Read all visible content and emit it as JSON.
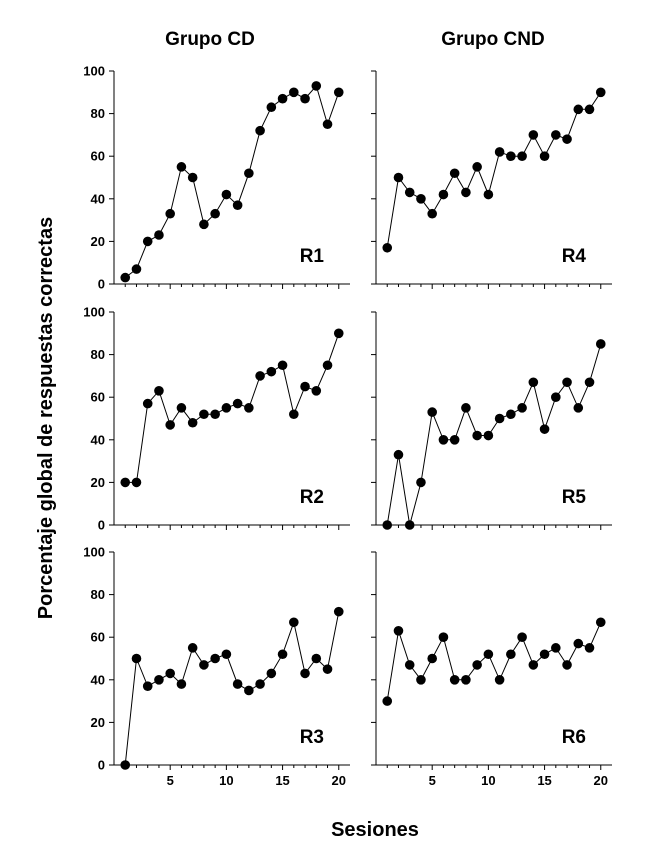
{
  "figure": {
    "column_titles": [
      "Grupo CD",
      "Grupo CND"
    ],
    "ylabel": "Porcentaje global de respuestas correctas",
    "xlabel": "Sesiones"
  },
  "chart_data": [
    {
      "type": "line",
      "label": "R1",
      "column": "Grupo CD",
      "x": [
        1,
        2,
        3,
        4,
        5,
        6,
        7,
        8,
        9,
        10,
        11,
        12,
        13,
        14,
        15,
        16,
        17,
        18,
        19,
        20
      ],
      "values": [
        3,
        7,
        20,
        23,
        33,
        55,
        50,
        28,
        33,
        42,
        37,
        52,
        72,
        83,
        87,
        90,
        87,
        93,
        75,
        90
      ],
      "ylim": [
        0,
        100
      ],
      "xlim": [
        0,
        21
      ],
      "yticks": [
        0,
        20,
        40,
        60,
        80,
        100
      ],
      "xticks": [
        5,
        10,
        15,
        20
      ],
      "marker": "filled-circle",
      "color": "#000000"
    },
    {
      "type": "line",
      "label": "R4",
      "column": "Grupo CND",
      "x": [
        1,
        2,
        3,
        4,
        5,
        6,
        7,
        8,
        9,
        10,
        11,
        12,
        13,
        14,
        15,
        16,
        17,
        18,
        19,
        20
      ],
      "values": [
        17,
        50,
        43,
        40,
        33,
        42,
        52,
        43,
        55,
        42,
        62,
        60,
        60,
        70,
        60,
        70,
        68,
        82,
        82,
        90
      ],
      "ylim": [
        0,
        100
      ],
      "xlim": [
        0,
        21
      ],
      "yticks": [
        0,
        20,
        40,
        60,
        80,
        100
      ],
      "xticks": [
        5,
        10,
        15,
        20
      ],
      "marker": "filled-circle",
      "color": "#000000"
    },
    {
      "type": "line",
      "label": "R2",
      "column": "Grupo CD",
      "x": [
        1,
        2,
        3,
        4,
        5,
        6,
        7,
        8,
        9,
        10,
        11,
        12,
        13,
        14,
        15,
        16,
        17,
        18,
        19,
        20
      ],
      "values": [
        20,
        20,
        57,
        63,
        47,
        55,
        48,
        52,
        52,
        55,
        57,
        55,
        70,
        72,
        75,
        52,
        65,
        63,
        75,
        90
      ],
      "ylim": [
        0,
        100
      ],
      "xlim": [
        0,
        21
      ],
      "yticks": [
        0,
        20,
        40,
        60,
        80,
        100
      ],
      "xticks": [
        5,
        10,
        15,
        20
      ],
      "marker": "filled-circle",
      "color": "#000000"
    },
    {
      "type": "line",
      "label": "R5",
      "column": "Grupo CND",
      "x": [
        1,
        2,
        3,
        4,
        5,
        6,
        7,
        8,
        9,
        10,
        11,
        12,
        13,
        14,
        15,
        16,
        17,
        18,
        19,
        20
      ],
      "values": [
        0,
        33,
        0,
        20,
        53,
        40,
        40,
        55,
        42,
        42,
        50,
        52,
        55,
        67,
        45,
        60,
        67,
        55,
        67,
        85
      ],
      "ylim": [
        0,
        100
      ],
      "xlim": [
        0,
        21
      ],
      "yticks": [
        0,
        20,
        40,
        60,
        80,
        100
      ],
      "xticks": [
        5,
        10,
        15,
        20
      ],
      "marker": "filled-circle",
      "color": "#000000"
    },
    {
      "type": "line",
      "label": "R3",
      "column": "Grupo CD",
      "x": [
        1,
        2,
        3,
        4,
        5,
        6,
        7,
        8,
        9,
        10,
        11,
        12,
        13,
        14,
        15,
        16,
        17,
        18,
        19,
        20
      ],
      "values": [
        0,
        50,
        37,
        40,
        43,
        38,
        55,
        47,
        50,
        52,
        38,
        35,
        38,
        43,
        52,
        67,
        43,
        50,
        45,
        72
      ],
      "ylim": [
        0,
        100
      ],
      "xlim": [
        0,
        21
      ],
      "yticks": [
        0,
        20,
        40,
        60,
        80,
        100
      ],
      "xticks": [
        5,
        10,
        15,
        20
      ],
      "marker": "filled-circle",
      "color": "#000000"
    },
    {
      "type": "line",
      "label": "R6",
      "column": "Grupo CND",
      "x": [
        1,
        2,
        3,
        4,
        5,
        6,
        7,
        8,
        9,
        10,
        11,
        12,
        13,
        14,
        15,
        16,
        17,
        18,
        19,
        20
      ],
      "values": [
        30,
        63,
        47,
        40,
        50,
        60,
        40,
        40,
        47,
        52,
        40,
        52,
        60,
        47,
        52,
        55,
        47,
        57,
        55,
        67
      ],
      "ylim": [
        0,
        100
      ],
      "xlim": [
        0,
        21
      ],
      "yticks": [
        0,
        20,
        40,
        60,
        80,
        100
      ],
      "xticks": [
        5,
        10,
        15,
        20
      ],
      "marker": "filled-circle",
      "color": "#000000"
    }
  ]
}
